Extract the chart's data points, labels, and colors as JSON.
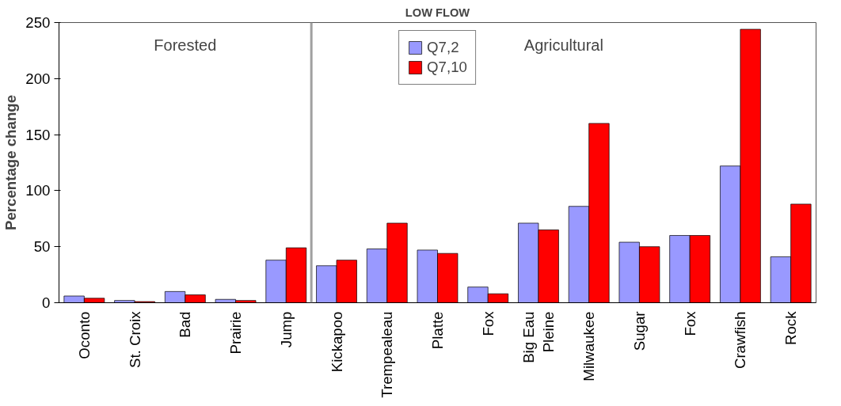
{
  "chart_data": {
    "type": "bar",
    "title": "LOW FLOW",
    "ylabel": "Percentage change",
    "categories": [
      "Oconto",
      "St. Croix",
      "Bad",
      "Prairie",
      "Jump",
      "Kickapoo",
      "Trempealeau",
      "Platte",
      "Fox",
      "Big Eau\nPleine",
      "Milwaukee",
      "Sugar",
      "Fox",
      "Crawfish",
      "Rock"
    ],
    "series": [
      {
        "name": "Q7,2",
        "color": "#9999ff",
        "values": [
          6,
          2,
          10,
          3,
          38,
          33,
          48,
          47,
          14,
          71,
          86,
          54,
          60,
          122,
          41
        ]
      },
      {
        "name": "Q7,10",
        "color": "#ff0000",
        "values": [
          4,
          1,
          7,
          2,
          49,
          38,
          71,
          44,
          8,
          65,
          160,
          50,
          60,
          244,
          88
        ]
      }
    ],
    "ylim": [
      0,
      250
    ],
    "yticks": [
      0,
      50,
      100,
      150,
      200,
      250
    ],
    "grid": false,
    "legend": "top",
    "annotations": [
      "Forested",
      "Agricultural"
    ]
  }
}
